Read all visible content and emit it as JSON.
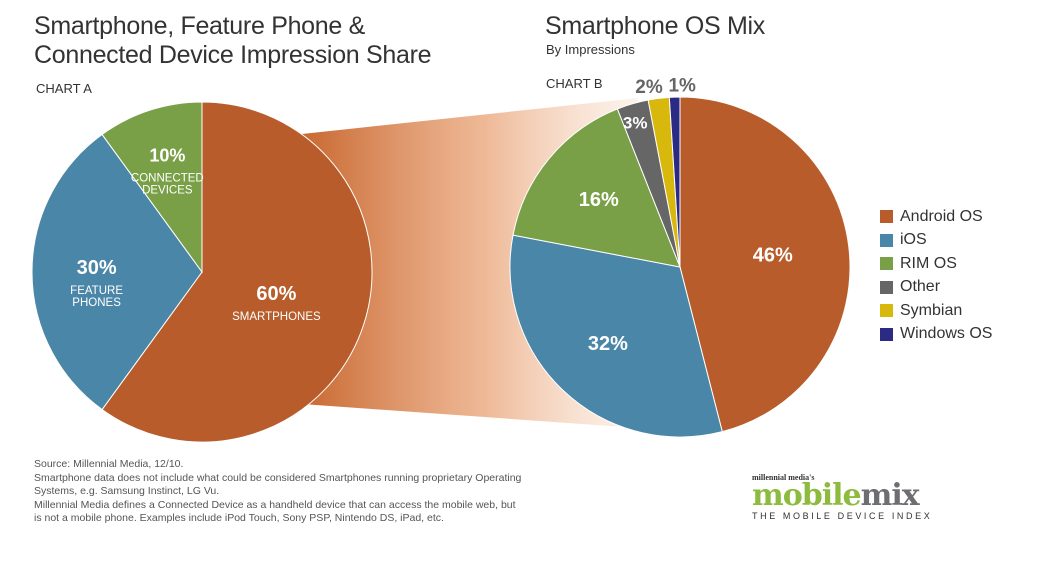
{
  "colors": {
    "android": "#b75c2a",
    "ios": "#4a86a8",
    "rim": "#79a046",
    "other": "#666666",
    "symbian": "#d8b80c",
    "windows": "#2b2b86",
    "brand_green": "#8dbb3f",
    "brand_gray": "#6d6e71"
  },
  "chart_data": [
    {
      "type": "pie",
      "id": "chart-a",
      "title": "Smartphone, Feature Phone & Connected Device Impression Share",
      "label": "CHART A",
      "slices": [
        {
          "name": "Smartphones",
          "value": 60,
          "pct_label": "60%",
          "caption": [
            "SMARTPHONES"
          ],
          "color": "#b75c2a"
        },
        {
          "name": "Feature Phones",
          "value": 30,
          "pct_label": "30%",
          "caption": [
            "FEATURE",
            "PHONES"
          ],
          "color": "#4a86a8"
        },
        {
          "name": "Connected Devices",
          "value": 10,
          "pct_label": "10%",
          "caption": [
            "CONNECTED",
            "DEVICES"
          ],
          "color": "#79a046"
        }
      ]
    },
    {
      "type": "pie",
      "id": "chart-b",
      "title": "Smartphone OS Mix",
      "subtitle": "By Impressions",
      "label": "CHART B",
      "slices": [
        {
          "name": "Android OS",
          "value": 46,
          "pct_label": "46%",
          "color": "#b75c2a"
        },
        {
          "name": "iOS",
          "value": 32,
          "pct_label": "32%",
          "color": "#4a86a8"
        },
        {
          "name": "RIM OS",
          "value": 16,
          "pct_label": "16%",
          "color": "#79a046"
        },
        {
          "name": "Other",
          "value": 3,
          "pct_label": "3%",
          "color": "#666666"
        },
        {
          "name": "Symbian",
          "value": 2,
          "pct_label": "2%",
          "color": "#d8b80c"
        },
        {
          "name": "Windows OS",
          "value": 1,
          "pct_label": "1%",
          "color": "#2b2b86"
        }
      ]
    }
  ],
  "legend": [
    {
      "label": "Android OS",
      "color": "#b75c2a"
    },
    {
      "label": "iOS",
      "color": "#4a86a8"
    },
    {
      "label": "RIM OS",
      "color": "#79a046"
    },
    {
      "label": "Other",
      "color": "#666666"
    },
    {
      "label": "Symbian",
      "color": "#d8b80c"
    },
    {
      "label": "Windows OS",
      "color": "#2b2b86"
    }
  ],
  "footnotes": [
    "Source: Millennial Media, 12/10.",
    "Smartphone data does not include what could be considered Smartphones running proprietary Operating Systems, e.g. Samsung Instinct, LG Vu.",
    "Millennial Media defines a Connected Device as a handheld device that can access the mobile web, but is not a mobile phone. Examples include iPod Touch, Sony PSP, Nintendo DS, iPad, etc."
  ],
  "brand": {
    "small": "millennial media's",
    "word1": "mobile",
    "word2": "mix",
    "tagline": "THE MOBILE DEVICE INDEX"
  }
}
